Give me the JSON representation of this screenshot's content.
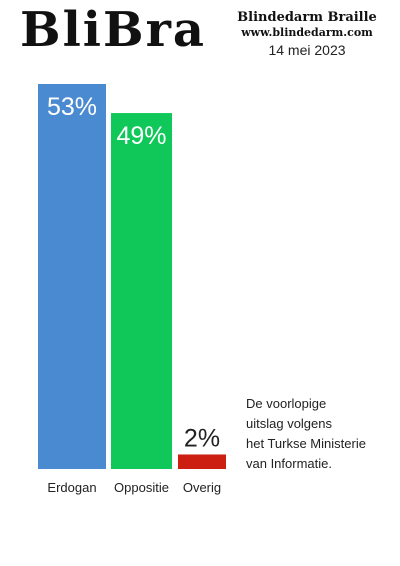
{
  "header": {
    "logo_text": "BliBra",
    "publication_name": "Blindedarm Braille",
    "website": "www.blindedarm.com",
    "date": "14 mei 2023"
  },
  "note": [
    "De voorlopige",
    "uitslag volgens",
    "het Turkse Ministerie",
    "van Informatie."
  ],
  "chart_data": {
    "type": "bar",
    "categories": [
      "Erdogan",
      "Oppositie",
      "Overig"
    ],
    "values": [
      53,
      49,
      2
    ],
    "value_labels": [
      "53%",
      "49%",
      "2%"
    ],
    "colors": [
      "#4a8ad0",
      "#10c85a",
      "#cc1f12"
    ],
    "title": "",
    "xlabel": "",
    "ylabel": "",
    "ylim": [
      0,
      53
    ],
    "grid": false,
    "legend": "none"
  }
}
